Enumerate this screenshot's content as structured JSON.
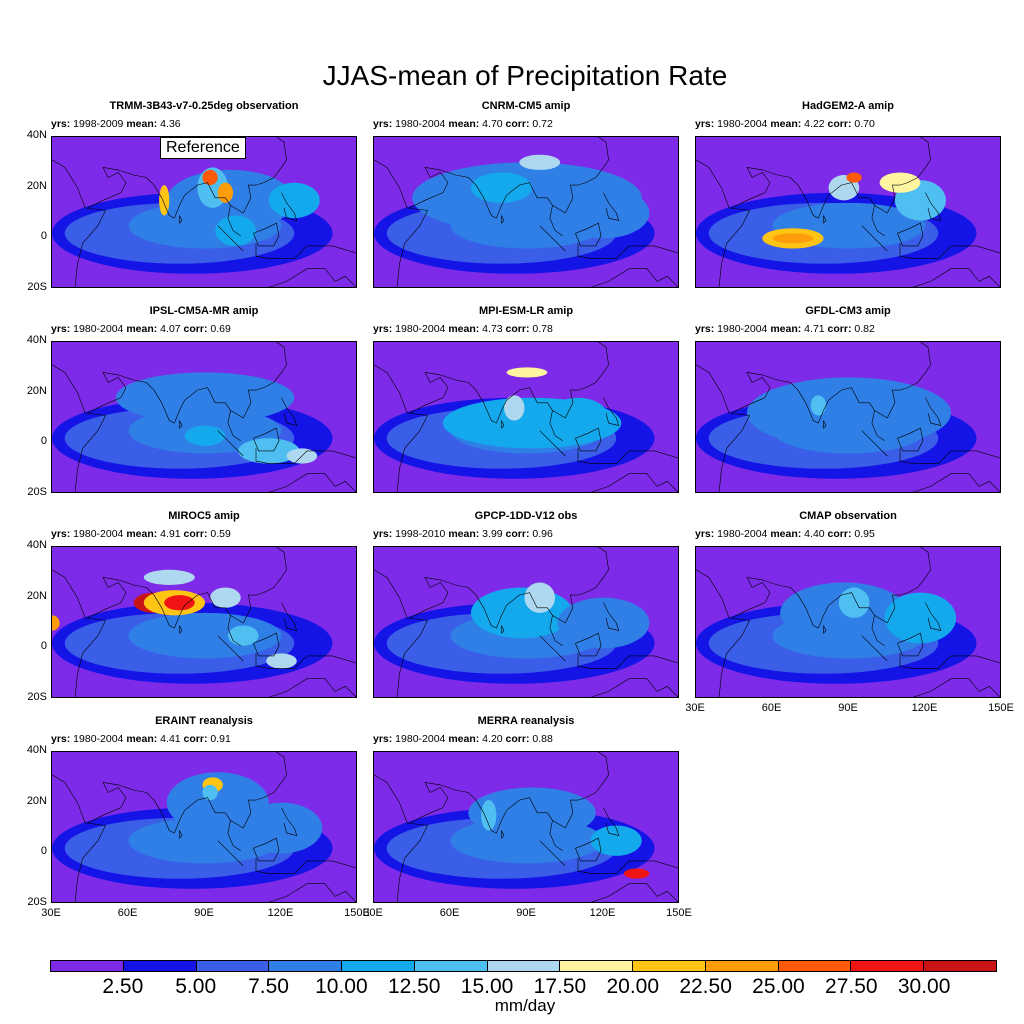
{
  "title": "JJAS-mean of Precipitation Rate",
  "chart_data": {
    "type": "heatmap",
    "title": "JJAS-mean of Precipitation Rate",
    "region": {
      "lon_ticks": [
        "30E",
        "60E",
        "90E",
        "120E",
        "150E"
      ],
      "lat_ticks": [
        "40N",
        "20N",
        "0",
        "20S"
      ],
      "lon_range": [
        30,
        150
      ],
      "lat_range": [
        -20,
        40
      ]
    },
    "panels": [
      {
        "name": "TRMM-3B43-v7-0.25deg observation",
        "yrs": "1998-2009",
        "mean": "4.36",
        "corr": null,
        "reference_label": "Reference"
      },
      {
        "name": "CNRM-CM5 amip",
        "yrs": "1980-2004",
        "mean": "4.70",
        "corr": "0.72"
      },
      {
        "name": "HadGEM2-A amip",
        "yrs": "1980-2004",
        "mean": "4.22",
        "corr": "0.70"
      },
      {
        "name": "IPSL-CM5A-MR amip",
        "yrs": "1980-2004",
        "mean": "4.07",
        "corr": "0.69"
      },
      {
        "name": "MPI-ESM-LR amip",
        "yrs": "1980-2004",
        "mean": "4.73",
        "corr": "0.78"
      },
      {
        "name": "GFDL-CM3 amip",
        "yrs": "1980-2004",
        "mean": "4.71",
        "corr": "0.82"
      },
      {
        "name": "MIROC5 amip",
        "yrs": "1980-2004",
        "mean": "4.91",
        "corr": "0.59"
      },
      {
        "name": "GPCP-1DD-V12 obs",
        "yrs": "1998-2010",
        "mean": "3.99",
        "corr": "0.96"
      },
      {
        "name": "CMAP observation",
        "yrs": "1980-2004",
        "mean": "4.40",
        "corr": "0.95"
      },
      {
        "name": "ERAINT reanalysis",
        "yrs": "1980-2004",
        "mean": "4.41",
        "corr": "0.91"
      },
      {
        "name": "MERRA reanalysis",
        "yrs": "1980-2004",
        "mean": "4.20",
        "corr": "0.88"
      }
    ],
    "colorbar": {
      "unit": "mm/day",
      "levels": [
        "2.50",
        "5.00",
        "7.50",
        "10.00",
        "12.50",
        "15.00",
        "17.50",
        "20.00",
        "22.50",
        "25.00",
        "27.50",
        "30.00"
      ],
      "colors": [
        "#7d2be8",
        "#1414e6",
        "#3a5ee8",
        "#2f7fe6",
        "#14a8ec",
        "#4fbef0",
        "#aed8f0",
        "#fff5a0",
        "#ffc414",
        "#ff9c0a",
        "#ff5a0a",
        "#f01414",
        "#c81414"
      ]
    }
  },
  "labels": {
    "yrs": "yrs:",
    "mean": "mean:",
    "corr": "corr:"
  }
}
